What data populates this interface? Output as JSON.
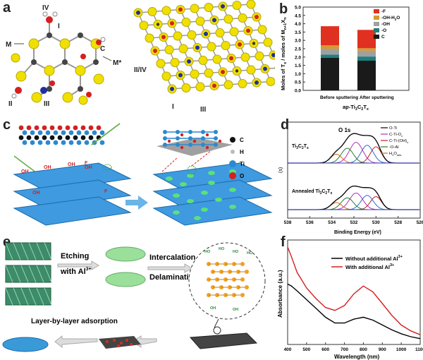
{
  "panels": {
    "a": {
      "label": "a",
      "site_labels": [
        "IV",
        "I",
        "M",
        "C",
        "M*",
        "II",
        "III",
        "II/IV",
        "I",
        "III"
      ]
    },
    "b": {
      "label": "b",
      "ylabel": "Moles of T",
      "ylabel_x": "x",
      "ylabel_rest": " / moles of M",
      "ylabel_sub": "n+1",
      "ylabel_x2": "X",
      "ylabel_n": "n",
      "xlabel": "ap-Ti",
      "xlabel_3": "3",
      "xlabel_c": "C",
      "xlabel_2": "2",
      "xlabel_t": "T",
      "xlabel_x": "x",
      "legend": [
        "-F",
        "-OH-H",
        "-OH",
        "-O",
        "C"
      ],
      "legend_sub": "2",
      "legend_o": "O",
      "ticks": [
        "0.0",
        "0.5",
        "1.0",
        "1.5",
        "2.0",
        "2.5",
        "3.0",
        "3.5",
        "4.0",
        "4.5",
        "5.0"
      ],
      "categories": [
        "Before sputtering",
        "After sputtering"
      ]
    },
    "c": {
      "label": "c",
      "legend": [
        "C",
        "H",
        "Ti",
        "O"
      ],
      "oh_labels": [
        "OH",
        "OH",
        "OH",
        "F",
        "OH",
        "F",
        "OH"
      ]
    },
    "d": {
      "label": "d",
      "title": "O 1s",
      "top_label": "Ti",
      "top_label_3": "3",
      "top_label_c": "C",
      "top_label_2": "2",
      "top_label_t": "T",
      "top_label_x": "x",
      "bottom_label": "Annealed Ti",
      "legend": [
        "O-Ti",
        "C-Ti-O",
        "C-Ti-(OH)",
        "-O-Al",
        "H"
      ],
      "legend_sub_x": "x",
      "legend_sub_x2": "x",
      "legend_h2o": "2",
      "legend_o_ads": "O",
      "legend_ads": "ads",
      "ylabel": "(s)",
      "xlabel": "Binding Energy (eV)",
      "ticks": [
        "538",
        "536",
        "534",
        "532",
        "530",
        "528",
        "526"
      ]
    },
    "e": {
      "label": "e",
      "etching": "Etching",
      "with_al": "with Al",
      "al_sup": "3+",
      "intercalation": "Intercalation",
      "delamination": "Delamination",
      "lbl": "Layer-by-layer adsorption",
      "ho": "HO",
      "oh": "OH"
    },
    "f": {
      "label": "f",
      "legend": [
        "Without additional Al",
        "With additional Al"
      ],
      "legend_sup": "3+",
      "ylabel": "Absorbance (a.u.)",
      "xlabel": "Wavelength (nm)",
      "ticks": [
        "400",
        "500",
        "600",
        "700",
        "800",
        "900",
        "1000",
        "1100"
      ]
    }
  },
  "chart_data": [
    {
      "type": "bar",
      "categories": [
        "Before sputtering",
        "After sputtering"
      ],
      "ylabel": "Moles of Tx / moles of Mn+1Xn",
      "xlabel": "ap-Ti3C2Tx",
      "ylim": [
        0,
        5.0
      ],
      "series": [
        {
          "name": "C",
          "values": [
            1.95,
            1.78
          ]
        },
        {
          "name": "-O",
          "values": [
            0.2,
            0.25
          ]
        },
        {
          "name": "-OH",
          "values": [
            0.35,
            0.35
          ]
        },
        {
          "name": "-OH-H2O",
          "values": [
            0.2,
            0.15
          ]
        },
        {
          "name": "-F",
          "values": [
            1.15,
            1.1
          ]
        }
      ],
      "colors": {
        "C": "#1a1a1a",
        "-O": "#1f7f7f",
        "-OH": "#a0a0a0",
        "-OH-H2O": "#d49a30",
        "-F": "#e03020"
      }
    },
    {
      "type": "line",
      "title": "O 1s",
      "xlabel": "Binding Energy (eV)",
      "xlim": [
        538,
        526
      ],
      "series": [
        {
          "name": "O-Ti",
          "values": []
        },
        {
          "name": "C-Ti-Ox",
          "values": []
        },
        {
          "name": "C-Ti-(OH)x",
          "values": []
        },
        {
          "name": "-O-Al",
          "values": []
        },
        {
          "name": "H2Oads",
          "values": []
        }
      ]
    },
    {
      "type": "line",
      "xlabel": "Wavelength (nm)",
      "ylabel": "Absorbance (a.u.)",
      "xlim": [
        400,
        1100
      ],
      "series": [
        {
          "name": "Without additional Al3+",
          "x": [
            400,
            420,
            450,
            500,
            550,
            600,
            650,
            700,
            750,
            800,
            850,
            900,
            950,
            1000,
            1050,
            1100
          ],
          "values": [
            0.62,
            0.6,
            0.55,
            0.46,
            0.37,
            0.28,
            0.22,
            0.22,
            0.26,
            0.28,
            0.25,
            0.2,
            0.15,
            0.11,
            0.08,
            0.06
          ]
        },
        {
          "name": "With additional Al3+",
          "x": [
            400,
            420,
            450,
            500,
            550,
            600,
            650,
            700,
            750,
            800,
            850,
            900,
            950,
            1000,
            1050,
            1100
          ],
          "values": [
            1.0,
            0.9,
            0.74,
            0.58,
            0.47,
            0.38,
            0.35,
            0.4,
            0.52,
            0.6,
            0.54,
            0.42,
            0.3,
            0.2,
            0.14,
            0.1
          ]
        }
      ],
      "colors": {
        "Without additional Al3+": "#000000",
        "With additional Al3+": "#d42020"
      }
    }
  ]
}
